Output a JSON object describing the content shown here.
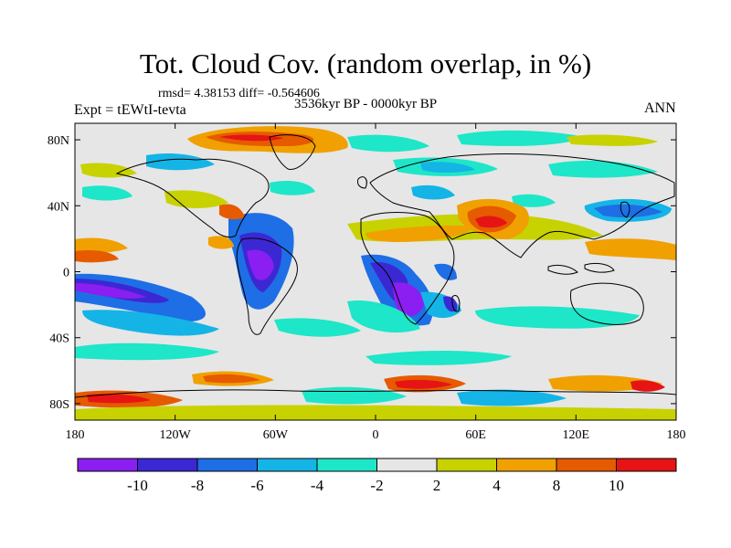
{
  "title": "Tot. Cloud Cov. (random overlap, in %)",
  "stats": "rmsd= 4.38153 diff= -0.564606",
  "experiment": "Expt = tEWtI-tevta",
  "period": "3536kyr BP - 0000kyr BP",
  "season": "ANN",
  "lon_ticks": [
    "180",
    "120W",
    "60W",
    "0",
    "60E",
    "120E",
    "180"
  ],
  "lat_ticks": [
    "80N",
    "40N",
    "0",
    "40S",
    "80S"
  ],
  "colorbar": {
    "labels": [
      "-10",
      "-8",
      "-6",
      "-4",
      "-2",
      "2",
      "4",
      "8",
      "10"
    ],
    "colors": [
      "#8b1ef0",
      "#3c28d2",
      "#1e6ee6",
      "#14b4e6",
      "#1ee6c8",
      "#e6e6e6",
      "#c8d200",
      "#f0a000",
      "#e65a00",
      "#e61414"
    ]
  }
}
